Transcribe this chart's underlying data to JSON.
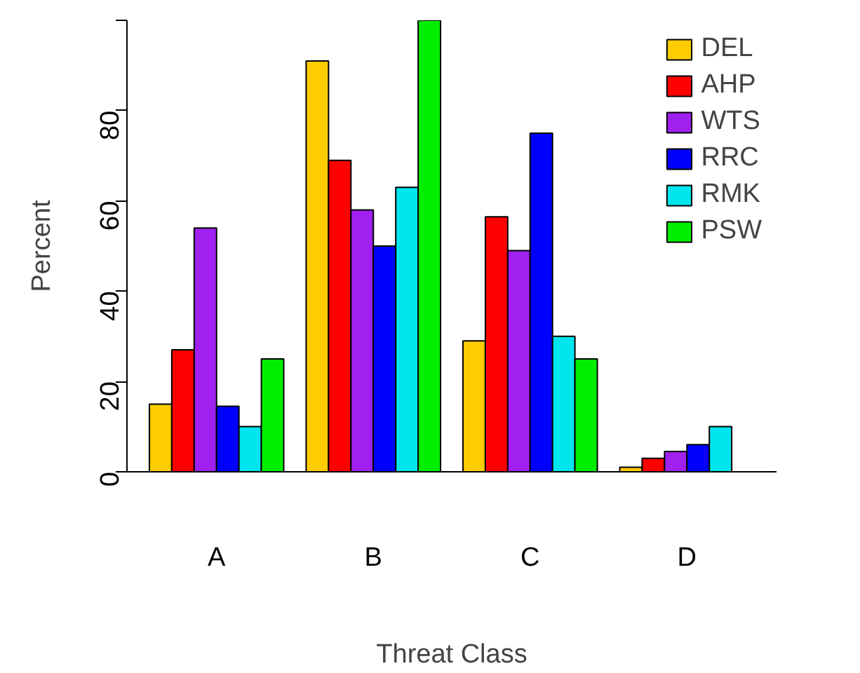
{
  "chart_data": {
    "type": "bar",
    "xlabel": "Threat Class",
    "ylabel": "Percent",
    "categories": [
      "A",
      "B",
      "C",
      "D"
    ],
    "series": [
      {
        "name": "DEL",
        "color": "#ffcc00",
        "values": [
          15,
          91,
          29,
          1
        ]
      },
      {
        "name": "AHP",
        "color": "#ff0000",
        "values": [
          27,
          69,
          56.5,
          3
        ]
      },
      {
        "name": "WTS",
        "color": "#a020f0",
        "values": [
          54,
          58,
          49,
          4.5
        ]
      },
      {
        "name": "RRC",
        "color": "#0000ff",
        "values": [
          14.5,
          50,
          75,
          6
        ]
      },
      {
        "name": "RMK",
        "color": "#00e5ee",
        "values": [
          10,
          63,
          30,
          10
        ]
      },
      {
        "name": "PSW",
        "color": "#00ee00",
        "values": [
          25,
          100,
          25,
          null
        ]
      }
    ],
    "ylim": [
      0,
      100
    ],
    "yticks": [
      0,
      20,
      40,
      60,
      80,
      {
        "value": 100,
        "label": null
      }
    ],
    "grid": false,
    "legend": "top right"
  }
}
